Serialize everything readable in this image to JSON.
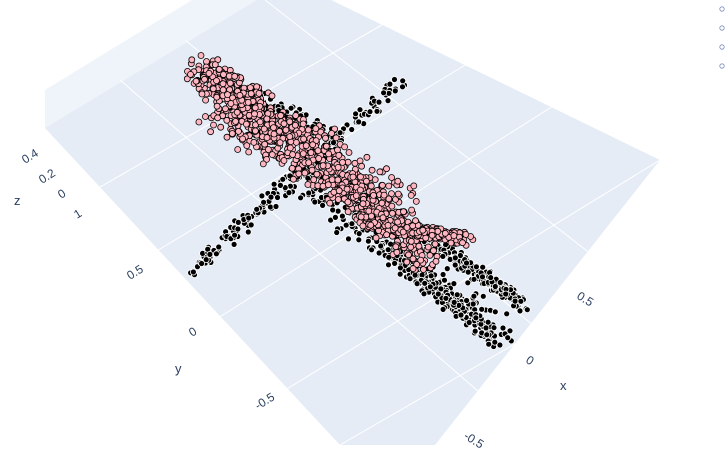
{
  "chart_data": {
    "type": "scatter",
    "title": "",
    "axes": {
      "x": {
        "label": "x",
        "ticks": [
          "0.5",
          "0",
          "-0.5"
        ]
      },
      "y": {
        "label": "y",
        "ticks": [
          "1",
          "0.5",
          "0",
          "-0.5"
        ]
      },
      "z": {
        "label": "z",
        "ticks": [
          "0.4",
          "0.2",
          "0"
        ]
      }
    },
    "series": [
      {
        "marker_fill": "#000000",
        "marker_line": "#ffffff",
        "marker": "circle"
      },
      {
        "marker_fill": "#ffb6c1",
        "marker_line": "#000000",
        "marker": "circle"
      }
    ],
    "legend": {
      "placement": "top-right",
      "entries": 4
    },
    "grid": true,
    "scene_background": "#e5ecf6",
    "grid_color": "#ffffff"
  }
}
